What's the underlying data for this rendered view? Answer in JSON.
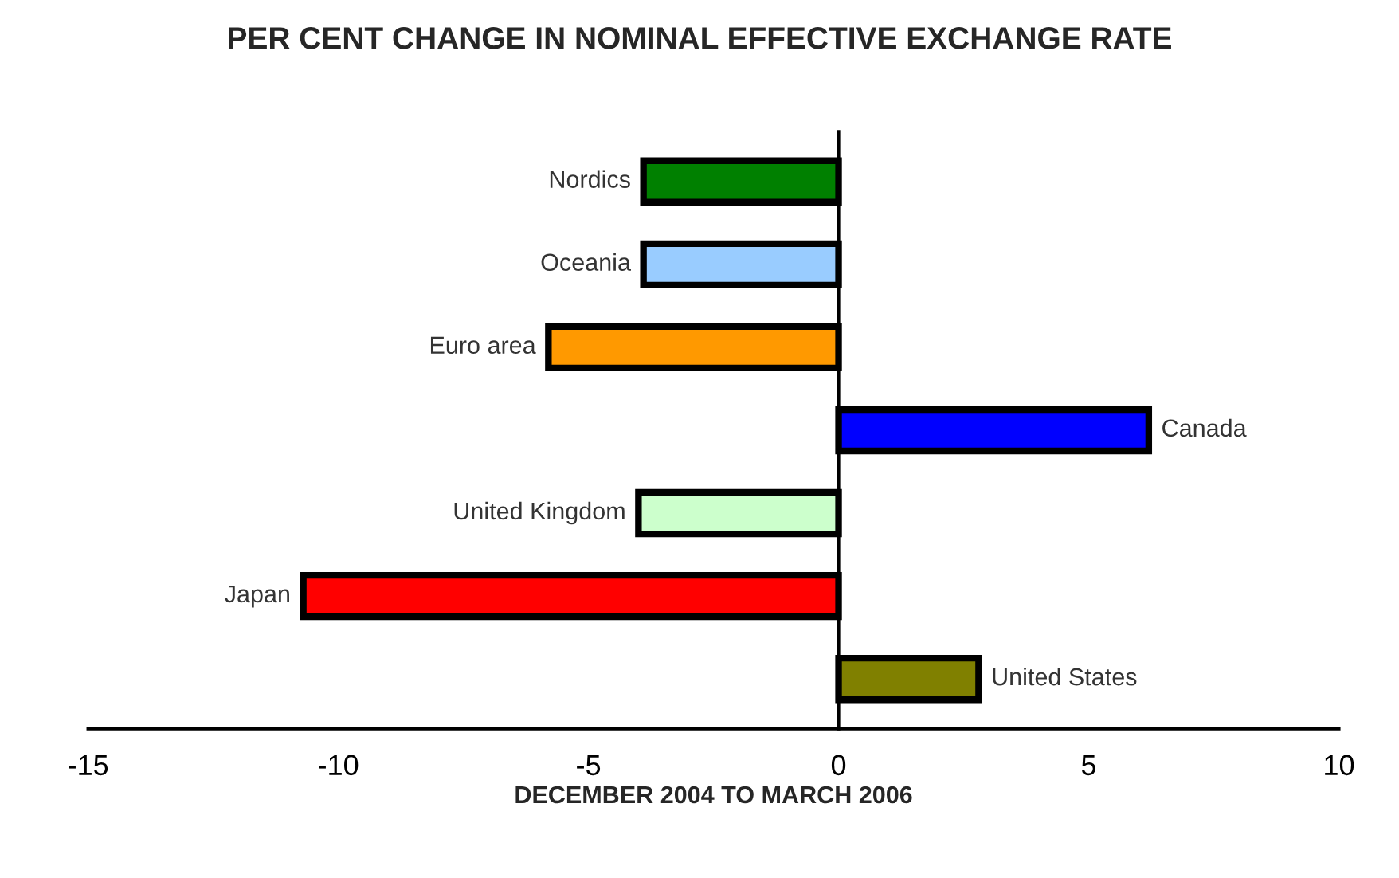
{
  "chart_data": {
    "type": "bar",
    "orientation": "horizontal",
    "title": "PER CENT CHANGE IN NOMINAL EFFECTIVE EXCHANGE RATE",
    "xlabel": "DECEMBER 2004 TO MARCH 2006",
    "categories": [
      "Nordics",
      "Oceania",
      "Euro area",
      "Canada",
      "United Kingdom",
      "Japan",
      "United States"
    ],
    "values": [
      -3.9,
      -3.9,
      -5.8,
      6.2,
      -4.0,
      -10.7,
      2.8
    ],
    "colors": [
      "#008000",
      "#99ccff",
      "#ff9900",
      "#0000ff",
      "#ccffcc",
      "#ff0000",
      "#808000"
    ],
    "xlim": [
      -15,
      10
    ],
    "xticks": [
      -15,
      -10,
      -5,
      0,
      5,
      10
    ]
  }
}
